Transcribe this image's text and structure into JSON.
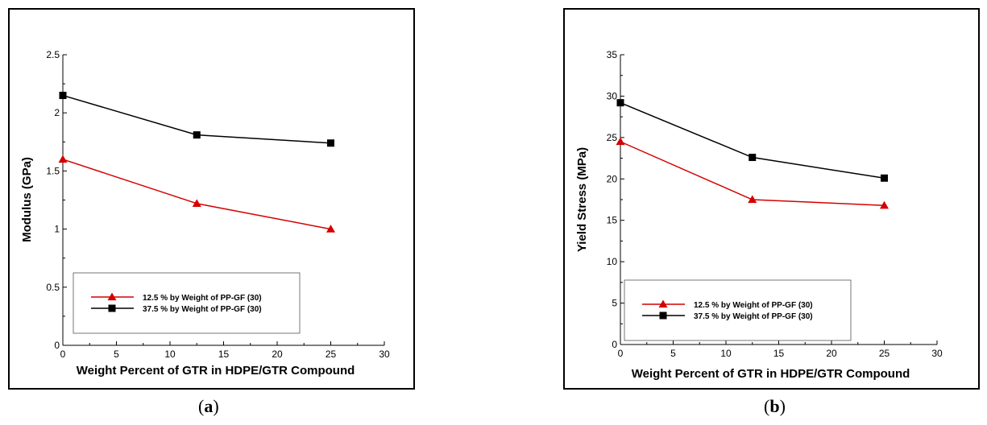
{
  "chart_data": [
    {
      "type": "line",
      "panel": "a",
      "xlabel": "Weight Percent of GTR in HDPE/GTR Compound",
      "ylabel": "Modulus (GPa)",
      "xlim": [
        0,
        30
      ],
      "ylim": [
        0,
        2.5
      ],
      "xticks": [
        "0",
        "5",
        "10",
        "15",
        "20",
        "25",
        "30"
      ],
      "yticks": [
        "0",
        "0.5",
        "1",
        "1.5",
        "2",
        "2.5"
      ],
      "grid": false,
      "legend_position": "lower-left",
      "series": [
        {
          "name": "12.5 % by Weight of PP-GF (30)",
          "color": "#d40000",
          "marker": "triangle",
          "x": [
            0,
            12.5,
            25
          ],
          "y": [
            1.6,
            1.22,
            1.0
          ]
        },
        {
          "name": "37.5 % by Weight of PP-GF (30)",
          "color": "#000000",
          "marker": "square",
          "x": [
            0,
            12.5,
            25
          ],
          "y": [
            2.15,
            1.81,
            1.74
          ]
        }
      ]
    },
    {
      "type": "line",
      "panel": "b",
      "xlabel": "Weight Percent of GTR in HDPE/GTR Compound",
      "ylabel": "Yield Stress (MPa)",
      "xlim": [
        0,
        30
      ],
      "ylim": [
        0,
        35
      ],
      "xticks": [
        "0",
        "5",
        "10",
        "15",
        "20",
        "25",
        "30"
      ],
      "yticks": [
        "0",
        "5",
        "10",
        "15",
        "20",
        "25",
        "30",
        "35"
      ],
      "grid": false,
      "legend_position": "lower-left",
      "series": [
        {
          "name": "12.5 % by Weight of PP-GF (30)",
          "color": "#d40000",
          "marker": "triangle",
          "x": [
            0,
            12.5,
            25
          ],
          "y": [
            24.5,
            17.5,
            16.8
          ]
        },
        {
          "name": "37.5 % by Weight of PP-GF (30)",
          "color": "#000000",
          "marker": "square",
          "x": [
            0,
            12.5,
            25
          ],
          "y": [
            29.2,
            22.6,
            20.1
          ]
        }
      ]
    }
  ],
  "captions": {
    "a": {
      "open": "(",
      "letter": "a",
      "close": ")"
    },
    "b": {
      "open": "(",
      "letter": "b",
      "close": ")"
    }
  }
}
